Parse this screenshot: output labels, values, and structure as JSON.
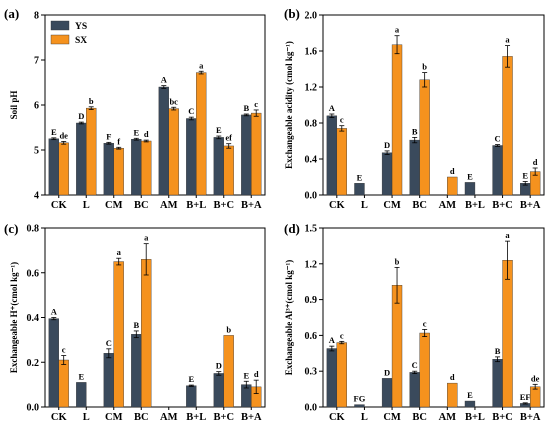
{
  "colors": {
    "YS": "#3a4a5c",
    "SX": "#f5921e"
  },
  "chart_data": [
    {
      "type": "bar",
      "panel_label": "(a)",
      "ylabel": "Soil pH",
      "ylim": [
        4,
        8
      ],
      "yticks": [
        4,
        5,
        6,
        7,
        8
      ],
      "categories": [
        "CK",
        "L",
        "CM",
        "BC",
        "AM",
        "B+L",
        "B+C",
        "B+A"
      ],
      "legend": {
        "position": "top-left",
        "entries": [
          "YS",
          "SX"
        ]
      },
      "series": [
        {
          "name": "YS",
          "values": [
            5.25,
            5.6,
            5.15,
            5.24,
            6.4,
            5.7,
            5.28,
            5.78
          ],
          "errors": [
            0.02,
            0.02,
            0.02,
            0.02,
            0.03,
            0.03,
            0.03,
            0.02
          ],
          "letters": [
            "E",
            "D",
            "F",
            "E",
            "A",
            "C",
            "E",
            "B"
          ]
        },
        {
          "name": "SX",
          "values": [
            5.16,
            5.93,
            5.04,
            5.2,
            5.92,
            6.72,
            5.09,
            5.82
          ],
          "errors": [
            0.03,
            0.03,
            0.02,
            0.02,
            0.03,
            0.03,
            0.05,
            0.07
          ],
          "letters": [
            "de",
            "b",
            "f",
            "d",
            "bc",
            "a",
            "ef",
            "c"
          ]
        }
      ]
    },
    {
      "type": "bar",
      "panel_label": "(b)",
      "ylabel": "Exchangeable acidity (cmol kg⁻¹)",
      "ylim": [
        0,
        2.0
      ],
      "yticks": [
        0.0,
        0.4,
        0.8,
        1.2,
        1.6,
        2.0
      ],
      "categories": [
        "CK",
        "L",
        "CM",
        "BC",
        "AM",
        "B+L",
        "B+C",
        "B+A"
      ],
      "series": [
        {
          "name": "YS",
          "values": [
            0.88,
            0.13,
            0.47,
            0.61,
            null,
            0.14,
            0.55,
            0.13
          ],
          "errors": [
            0.02,
            0.0,
            0.02,
            0.03,
            0,
            0.0,
            0.01,
            0.02
          ],
          "letters": [
            "A",
            "E",
            "D",
            "B",
            "",
            "E",
            "C",
            "E"
          ]
        },
        {
          "name": "SX",
          "values": [
            0.74,
            null,
            1.67,
            1.28,
            0.2,
            null,
            1.54,
            0.26
          ],
          "errors": [
            0.03,
            0,
            0.1,
            0.08,
            0.0,
            0,
            0.12,
            0.04
          ],
          "letters": [
            "c",
            "",
            "a",
            "b",
            "d",
            "",
            "a",
            "d"
          ]
        }
      ]
    },
    {
      "type": "bar",
      "panel_label": "(c)",
      "ylabel": "Exchangeable H⁺(cmol kg⁻¹)",
      "ylim": [
        0,
        0.8
      ],
      "yticks": [
        0.0,
        0.2,
        0.4,
        0.6,
        0.8
      ],
      "categories": [
        "CK",
        "L",
        "CM",
        "BC",
        "AM",
        "B+L",
        "B+C",
        "B+A"
      ],
      "series": [
        {
          "name": "YS",
          "values": [
            0.395,
            0.11,
            0.24,
            0.325,
            null,
            0.095,
            0.15,
            0.1
          ],
          "errors": [
            0.005,
            0.0,
            0.02,
            0.015,
            0,
            0.003,
            0.008,
            0.015
          ],
          "letters": [
            "A",
            "E",
            "C",
            "B",
            "",
            "E",
            "D",
            "E"
          ]
        },
        {
          "name": "SX",
          "values": [
            0.21,
            null,
            0.65,
            0.66,
            null,
            null,
            0.32,
            0.09
          ],
          "errors": [
            0.02,
            0,
            0.015,
            0.07,
            0,
            0,
            0.0,
            0.03
          ],
          "letters": [
            "c",
            "",
            "a",
            "a",
            "",
            "",
            "b",
            "d"
          ]
        }
      ]
    },
    {
      "type": "bar",
      "panel_label": "(d)",
      "ylabel": "Exchangeable Al³⁺(cmol kg⁻¹)",
      "ylim": [
        0,
        1.5
      ],
      "yticks": [
        0.0,
        0.3,
        0.6,
        0.9,
        1.2,
        1.5
      ],
      "categories": [
        "CK",
        "L",
        "CM",
        "BC",
        "AM",
        "B+L",
        "B+C",
        "B+A"
      ],
      "series": [
        {
          "name": "YS",
          "values": [
            0.49,
            0.02,
            0.24,
            0.29,
            null,
            0.05,
            0.4,
            0.03
          ],
          "errors": [
            0.02,
            0.0,
            0.0,
            0.01,
            0,
            0.0,
            0.02,
            0.005
          ],
          "letters": [
            "A",
            "FG",
            "D",
            "C",
            "",
            "E",
            "B",
            "EF"
          ]
        },
        {
          "name": "SX",
          "values": [
            0.54,
            null,
            1.02,
            0.62,
            0.2,
            null,
            1.23,
            0.17
          ],
          "errors": [
            0.01,
            0,
            0.15,
            0.03,
            0.0,
            0,
            0.16,
            0.02
          ],
          "letters": [
            "c",
            "",
            "b",
            "c",
            "d",
            "",
            "a",
            "de"
          ]
        }
      ]
    }
  ]
}
